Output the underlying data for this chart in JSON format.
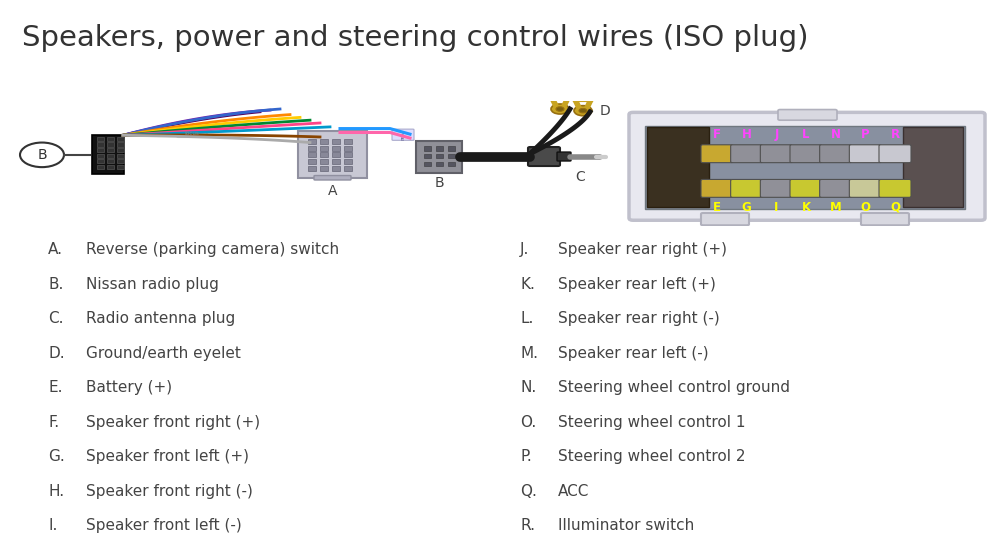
{
  "title": "Speakers, power and steering control wires (ISO plug)",
  "title_fontsize": 21,
  "title_color": "#333333",
  "bg_color": "#ffffff",
  "left_labels": [
    [
      "A.",
      "Reverse (parking camera) switch"
    ],
    [
      "B.",
      "Nissan radio plug"
    ],
    [
      "C.",
      "Radio antenna plug"
    ],
    [
      "D.",
      "Ground/earth eyelet"
    ],
    [
      "E.",
      "Battery (+)"
    ],
    [
      "F.",
      "Speaker front right (+)"
    ],
    [
      "G.",
      "Speaker front left (+)"
    ],
    [
      "H.",
      "Speaker front right (-)"
    ],
    [
      "I.",
      "Speaker front left (-)"
    ]
  ],
  "right_labels": [
    [
      "J.",
      "Speaker rear right (+)"
    ],
    [
      "K.",
      "Speaker rear left (+)"
    ],
    [
      "L.",
      "Speaker rear right (-)"
    ],
    [
      "M.",
      "Speaker rear left (-)"
    ],
    [
      "N.",
      "Steering wheel control ground"
    ],
    [
      "O.",
      "Steering wheel control 1"
    ],
    [
      "P.",
      "Steering wheel control 2"
    ],
    [
      "Q.",
      "ACC"
    ],
    [
      "R.",
      "Illuminator switch"
    ]
  ],
  "label_fontsize": 11.0,
  "label_color": "#444444",
  "pin_letters_top": [
    "F",
    "H",
    "J",
    "L",
    "N",
    "P",
    "R"
  ],
  "pin_letters_bot": [
    "E",
    "G",
    "I",
    "K",
    "M",
    "O",
    "Q"
  ],
  "pin_color_top": "#ff44ff",
  "pin_color_bot": "#ffff00",
  "wire_colors": [
    "#550055",
    "#7722aa",
    "#3355ff",
    "#ff8800",
    "#ffcc00",
    "#008833",
    "#ff4488",
    "#0099cc",
    "#884400",
    "#aaaaaa"
  ]
}
